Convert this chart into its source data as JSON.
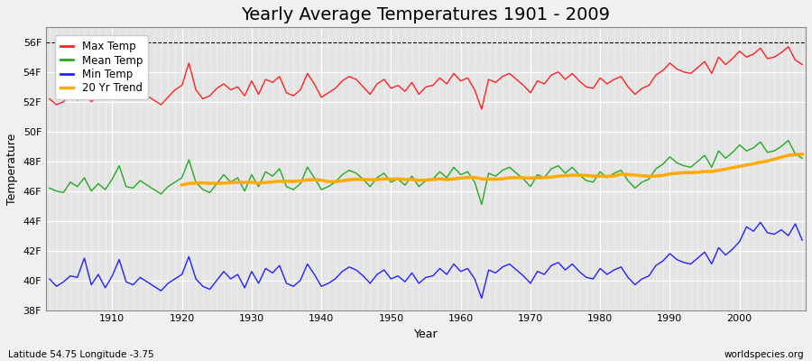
{
  "title": "Yearly Average Temperatures 1901 - 2009",
  "xlabel": "Year",
  "ylabel": "Temperature",
  "lat_lon_label": "Latitude 54.75 Longitude -3.75",
  "watermark": "worldspecies.org",
  "years": [
    1901,
    1902,
    1903,
    1904,
    1905,
    1906,
    1907,
    1908,
    1909,
    1910,
    1911,
    1912,
    1913,
    1914,
    1915,
    1916,
    1917,
    1918,
    1919,
    1920,
    1921,
    1922,
    1923,
    1924,
    1925,
    1926,
    1927,
    1928,
    1929,
    1930,
    1931,
    1932,
    1933,
    1934,
    1935,
    1936,
    1937,
    1938,
    1939,
    1940,
    1941,
    1942,
    1943,
    1944,
    1945,
    1946,
    1947,
    1948,
    1949,
    1950,
    1951,
    1952,
    1953,
    1954,
    1955,
    1956,
    1957,
    1958,
    1959,
    1960,
    1961,
    1962,
    1963,
    1964,
    1965,
    1966,
    1967,
    1968,
    1969,
    1970,
    1971,
    1972,
    1973,
    1974,
    1975,
    1976,
    1977,
    1978,
    1979,
    1980,
    1981,
    1982,
    1983,
    1984,
    1985,
    1986,
    1987,
    1988,
    1989,
    1990,
    1991,
    1992,
    1993,
    1994,
    1995,
    1996,
    1997,
    1998,
    1999,
    2000,
    2001,
    2002,
    2003,
    2004,
    2005,
    2006,
    2007,
    2008,
    2009
  ],
  "max_temp": [
    52.2,
    51.8,
    52.0,
    52.5,
    52.1,
    52.6,
    52.0,
    52.4,
    52.3,
    52.8,
    53.4,
    52.5,
    52.3,
    52.7,
    52.4,
    52.1,
    51.8,
    52.3,
    52.8,
    53.1,
    54.6,
    52.8,
    52.2,
    52.4,
    52.9,
    53.2,
    52.8,
    53.0,
    52.4,
    53.4,
    52.5,
    53.5,
    53.3,
    53.7,
    52.6,
    52.4,
    52.8,
    53.9,
    53.2,
    52.3,
    52.6,
    52.9,
    53.4,
    53.7,
    53.5,
    53.0,
    52.5,
    53.2,
    53.5,
    52.9,
    53.1,
    52.7,
    53.3,
    52.5,
    53.0,
    53.1,
    53.6,
    53.2,
    53.9,
    53.4,
    53.6,
    52.8,
    51.5,
    53.5,
    53.3,
    53.7,
    53.9,
    53.5,
    53.1,
    52.6,
    53.4,
    53.2,
    53.8,
    54.0,
    53.5,
    53.9,
    53.4,
    53.0,
    52.9,
    53.6,
    53.2,
    53.5,
    53.7,
    53.0,
    52.5,
    52.9,
    53.1,
    53.8,
    54.1,
    54.6,
    54.2,
    54.0,
    53.9,
    54.3,
    54.7,
    53.9,
    55.0,
    54.5,
    54.9,
    55.4,
    55.0,
    55.2,
    55.6,
    54.9,
    55.0,
    55.3,
    55.7,
    54.8,
    54.5
  ],
  "mean_temp": [
    46.2,
    46.0,
    45.9,
    46.6,
    46.3,
    46.9,
    46.0,
    46.5,
    46.1,
    46.8,
    47.7,
    46.3,
    46.2,
    46.7,
    46.4,
    46.1,
    45.8,
    46.3,
    46.6,
    46.9,
    48.1,
    46.6,
    46.1,
    45.9,
    46.5,
    47.1,
    46.6,
    46.9,
    46.0,
    47.1,
    46.3,
    47.3,
    47.0,
    47.5,
    46.3,
    46.1,
    46.5,
    47.6,
    46.9,
    46.1,
    46.3,
    46.6,
    47.1,
    47.4,
    47.2,
    46.8,
    46.3,
    46.9,
    47.2,
    46.6,
    46.8,
    46.4,
    47.0,
    46.3,
    46.7,
    46.8,
    47.3,
    46.9,
    47.6,
    47.1,
    47.3,
    46.6,
    45.1,
    47.2,
    47.0,
    47.4,
    47.6,
    47.2,
    46.8,
    46.3,
    47.1,
    46.9,
    47.5,
    47.7,
    47.2,
    47.6,
    47.1,
    46.7,
    46.6,
    47.3,
    46.9,
    47.2,
    47.4,
    46.7,
    46.2,
    46.6,
    46.8,
    47.5,
    47.8,
    48.3,
    47.9,
    47.7,
    47.6,
    48.0,
    48.4,
    47.6,
    48.7,
    48.2,
    48.6,
    49.1,
    48.7,
    48.9,
    49.3,
    48.6,
    48.7,
    49.0,
    49.4,
    48.5,
    48.2
  ],
  "min_temp": [
    40.1,
    39.6,
    39.9,
    40.3,
    40.2,
    41.5,
    39.7,
    40.4,
    39.5,
    40.3,
    41.4,
    39.9,
    39.7,
    40.2,
    39.9,
    39.6,
    39.3,
    39.8,
    40.1,
    40.4,
    41.6,
    40.1,
    39.6,
    39.4,
    40.0,
    40.6,
    40.1,
    40.4,
    39.5,
    40.6,
    39.8,
    40.8,
    40.5,
    41.0,
    39.8,
    39.6,
    40.0,
    41.1,
    40.4,
    39.6,
    39.8,
    40.1,
    40.6,
    40.9,
    40.7,
    40.3,
    39.8,
    40.4,
    40.7,
    40.1,
    40.3,
    39.9,
    40.5,
    39.8,
    40.2,
    40.3,
    40.8,
    40.4,
    41.1,
    40.6,
    40.8,
    40.1,
    38.8,
    40.7,
    40.5,
    40.9,
    41.1,
    40.7,
    40.3,
    39.8,
    40.6,
    40.4,
    41.0,
    41.2,
    40.7,
    41.1,
    40.6,
    40.2,
    40.1,
    40.8,
    40.4,
    40.7,
    40.9,
    40.2,
    39.7,
    40.1,
    40.3,
    41.0,
    41.3,
    41.8,
    41.4,
    41.2,
    41.1,
    41.5,
    41.9,
    41.1,
    42.2,
    41.7,
    42.1,
    42.6,
    43.6,
    43.3,
    43.9,
    43.2,
    43.1,
    43.4,
    43.0,
    43.8,
    42.7
  ],
  "ylim": [
    38,
    57
  ],
  "yticks": [
    38,
    40,
    42,
    44,
    46,
    48,
    50,
    52,
    54,
    56
  ],
  "ytick_labels": [
    "38F",
    "40F",
    "42F",
    "44F",
    "46F",
    "48F",
    "50F",
    "52F",
    "54F",
    "56F"
  ],
  "xticks": [
    1910,
    1920,
    1930,
    1940,
    1950,
    1960,
    1970,
    1980,
    1990,
    2000
  ],
  "max_color": "#ff2222",
  "mean_color": "#22aa22",
  "min_color": "#2222ff",
  "trend_color": "#ffaa00",
  "bg_color": "#f0f0f0",
  "plot_bg_color": "#e4e4e4",
  "grid_color": "#ffffff",
  "top_line_value": 56,
  "trend_window": 20,
  "title_fontsize": 14,
  "axis_fontsize": 9,
  "tick_fontsize": 8
}
